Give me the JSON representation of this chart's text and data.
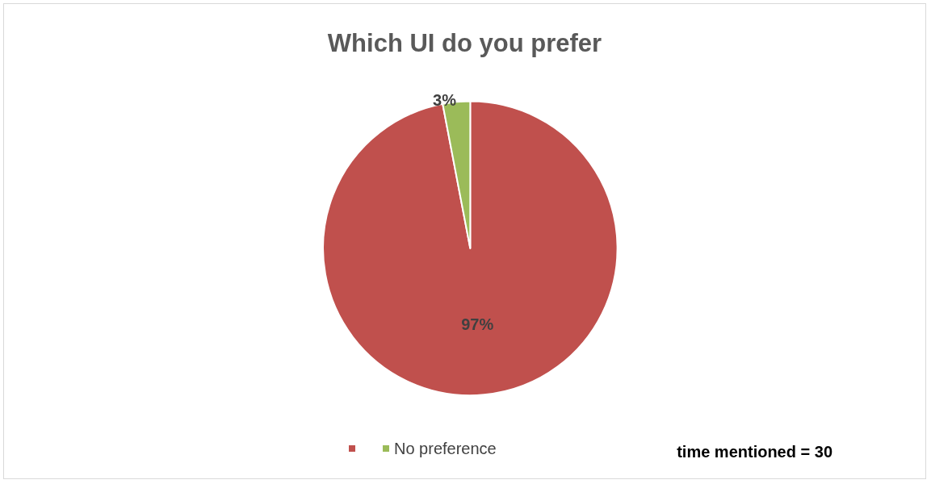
{
  "chart_data": {
    "type": "pie",
    "title": "Which UI do you prefer",
    "categories": [
      null,
      "No preference"
    ],
    "values": [
      97,
      3
    ],
    "value_labels": [
      "97%",
      "3%"
    ],
    "colors": [
      "#c0504d",
      "#9bbb59"
    ],
    "legend": "bottom",
    "annotations": [
      "time mentioned = 30"
    ]
  }
}
